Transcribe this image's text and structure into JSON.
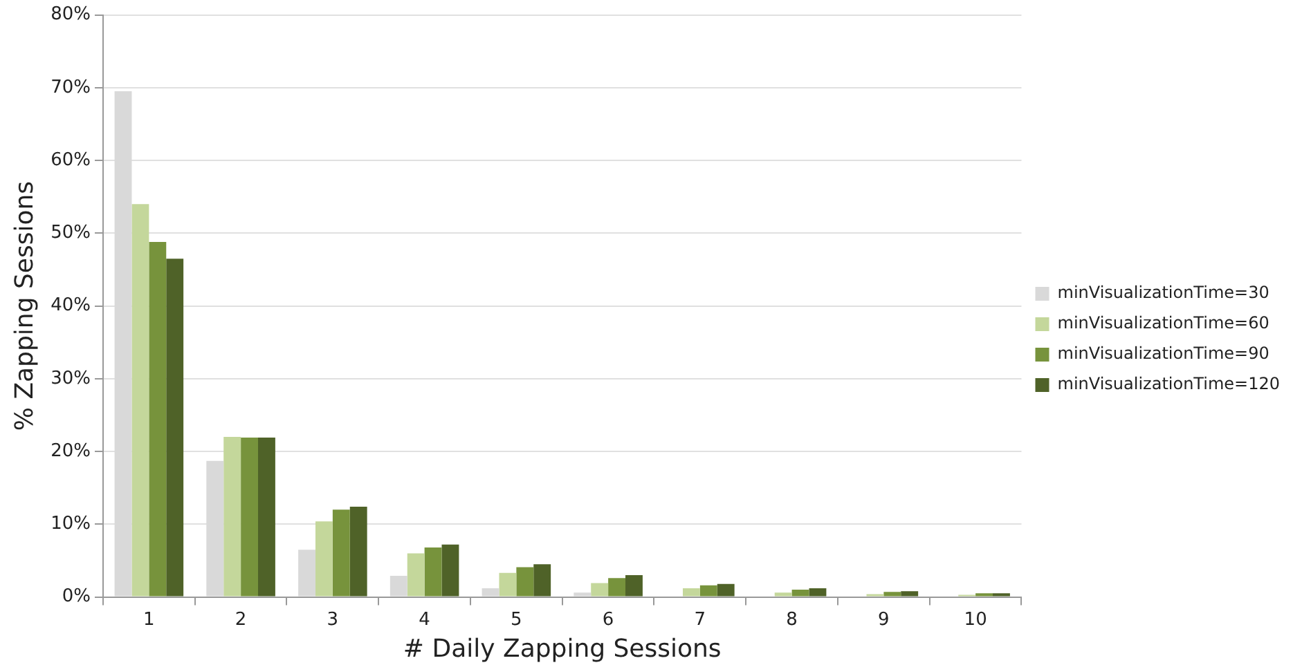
{
  "chart_data": {
    "type": "bar",
    "xlabel": "# Daily Zapping Sessions",
    "ylabel": "% Zapping Sessions",
    "categories": [
      "1",
      "2",
      "3",
      "4",
      "5",
      "6",
      "7",
      "8",
      "9",
      "10"
    ],
    "series": [
      {
        "name": "minVisualizationTime=30",
        "color": "#d9d9d9",
        "values": [
          69.5,
          18.7,
          6.5,
          2.9,
          1.2,
          0.6,
          null,
          null,
          null,
          null
        ]
      },
      {
        "name": "minVisualizationTime=60",
        "color": "#c4d79b",
        "values": [
          54,
          22,
          10.4,
          6,
          3.3,
          1.9,
          1.2,
          0.6,
          0.4,
          0.3
        ]
      },
      {
        "name": "minVisualizationTime=90",
        "color": "#77933c",
        "values": [
          48.8,
          21.9,
          12,
          6.8,
          4.1,
          2.6,
          1.6,
          1,
          0.7,
          0.5
        ]
      },
      {
        "name": "minVisualizationTime=120",
        "color": "#4f6228",
        "values": [
          46.5,
          21.9,
          12.4,
          7.2,
          4.5,
          3,
          1.8,
          1.2,
          0.8,
          0.5
        ]
      }
    ],
    "ylim": [
      0,
      80
    ],
    "yticks": [
      {
        "value": 0,
        "label": "0%"
      },
      {
        "value": 10,
        "label": "10%"
      },
      {
        "value": 20,
        "label": "20%"
      },
      {
        "value": 30,
        "label": "30%"
      },
      {
        "value": 40,
        "label": "40%"
      },
      {
        "value": 50,
        "label": "50%"
      },
      {
        "value": 60,
        "label": "60%"
      },
      {
        "value": 70,
        "label": "70%"
      },
      {
        "value": 80,
        "label": "80%"
      }
    ],
    "grid": "y",
    "legend": "right"
  }
}
